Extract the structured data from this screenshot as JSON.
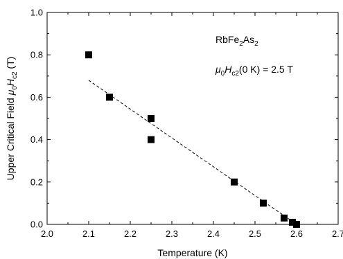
{
  "chart_data": {
    "type": "scatter",
    "xlabel": "Temperature (K)",
    "ylabel_parts": {
      "prefix": "Upper Critical Field ",
      "mu": "μ",
      "mu_sub": "0",
      "h": "H",
      "h_sub": "c2",
      "unit": " (T)"
    },
    "xlim": [
      2.0,
      2.7
    ],
    "ylim": [
      0.0,
      1.0
    ],
    "xticks": [
      "2.0",
      "2.1",
      "2.2",
      "2.3",
      "2.4",
      "2.5",
      "2.6",
      "2.7"
    ],
    "yticks": [
      "0.0",
      "0.2",
      "0.4",
      "0.6",
      "0.8",
      "1.0"
    ],
    "grid": false,
    "series": [
      {
        "marker": "square",
        "color": "#000000",
        "points": [
          {
            "x": 2.1,
            "y": 0.8
          },
          {
            "x": 2.15,
            "y": 0.6
          },
          {
            "x": 2.25,
            "y": 0.5
          },
          {
            "x": 2.25,
            "y": 0.4
          },
          {
            "x": 2.45,
            "y": 0.2
          },
          {
            "x": 2.52,
            "y": 0.1
          },
          {
            "x": 2.57,
            "y": 0.03
          },
          {
            "x": 2.59,
            "y": 0.01
          },
          {
            "x": 2.6,
            "y": 0.0
          }
        ]
      }
    ],
    "fit_line": {
      "style": "dashed",
      "color": "#000000",
      "start": {
        "x": 2.1,
        "y": 0.68
      },
      "end": {
        "x": 2.6,
        "y": 0.0
      }
    },
    "annotations": {
      "compound": {
        "a": "RbFe",
        "sub1": "2",
        "b": "As",
        "sub2": "2"
      },
      "field": {
        "mu": "μ",
        "mu_sub": "0",
        "h": "H",
        "h_sub": "c2",
        "rest": "(0 K) = 2.5 T"
      }
    }
  }
}
